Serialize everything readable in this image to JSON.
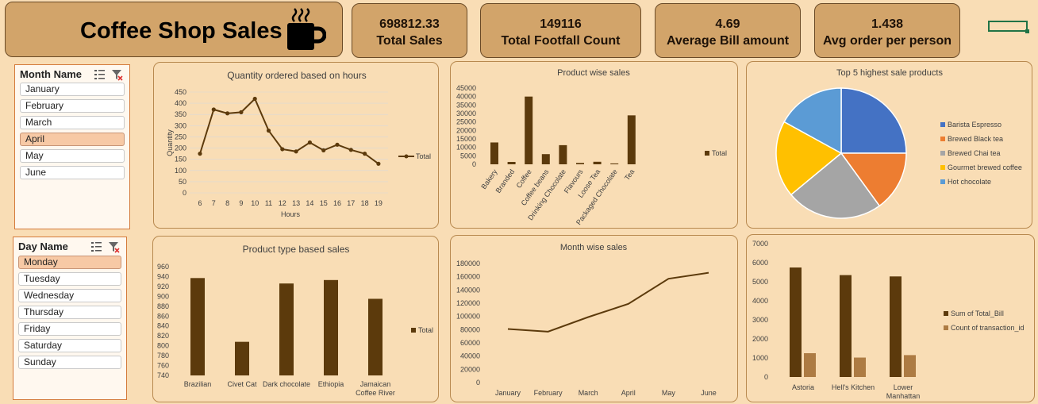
{
  "header": {
    "title": "Coffee Shop Sales",
    "icon": "coffee-cup-icon"
  },
  "kpis": [
    {
      "value": "698812.33",
      "label": "Total Sales"
    },
    {
      "value": "149116",
      "label": "Total Footfall Count"
    },
    {
      "value": "4.69",
      "label": "Average Bill amount"
    },
    {
      "value": "1.438",
      "label": "Avg order per person"
    }
  ],
  "slicers": {
    "month": {
      "header": "Month Name",
      "items": [
        "January",
        "February",
        "March",
        "April",
        "May",
        "June"
      ],
      "selected": "April"
    },
    "day": {
      "header": "Day Name",
      "items": [
        "Monday",
        "Tuesday",
        "Wednesday",
        "Thursday",
        "Friday",
        "Saturday",
        "Sunday"
      ],
      "selected": "Monday"
    }
  },
  "colors": {
    "brown_dark": "#5c3a0c",
    "brown_light": "#ad7b43",
    "kpi_fill": "#d2a46a",
    "background": "#f9ddb5",
    "pie": [
      "#4472c4",
      "#ed7d31",
      "#a5a5a5",
      "#ffc000",
      "#5b9bd5"
    ]
  },
  "chart_data": [
    {
      "id": "hours",
      "type": "line",
      "title": "Quantity ordered based on hours",
      "xlabel": "Hours",
      "ylabel": "Quantity",
      "x": [
        "6",
        "7",
        "8",
        "9",
        "10",
        "11",
        "12",
        "13",
        "14",
        "15",
        "16",
        "17",
        "18",
        "19"
      ],
      "series": [
        {
          "name": "Total",
          "values": [
            175,
            372,
            355,
            360,
            420,
            278,
            195,
            185,
            225,
            190,
            215,
            192,
            175,
            130
          ]
        }
      ],
      "ylim": [
        0,
        450
      ],
      "yticks": [
        0,
        50,
        100,
        150,
        200,
        250,
        300,
        350,
        400,
        450
      ],
      "legend": "right",
      "grid": true
    },
    {
      "id": "product",
      "type": "bar",
      "title": "Product wise sales",
      "categories": [
        "Bakery",
        "Branded",
        "Coffee",
        "Coffee beans",
        "Drinking Chocolate",
        "Flavours",
        "Loose Tea",
        "Packaged Chocolate",
        "Tea"
      ],
      "series": [
        {
          "name": "Total",
          "values": [
            12900,
            1400,
            40000,
            6000,
            11300,
            800,
            1500,
            500,
            28900
          ]
        }
      ],
      "ylim": [
        0,
        45000
      ],
      "yticks": [
        0,
        5000,
        10000,
        15000,
        20000,
        25000,
        30000,
        35000,
        40000,
        45000
      ],
      "legend": "right",
      "grid": false
    },
    {
      "id": "top5",
      "type": "pie",
      "title": "Top 5 highest sale products",
      "categories": [
        "Barista Espresso",
        "Brewed Black tea",
        "Brewed Chai tea",
        "Gourmet brewed coffee",
        "Hot chocolate"
      ],
      "values": [
        25,
        15,
        24,
        19,
        17
      ],
      "legend": "right"
    },
    {
      "id": "ptype",
      "type": "bar",
      "title": "Product type based sales",
      "categories": [
        "Brazilian",
        "Civet Cat",
        "Dark chocolate",
        "Ethiopia",
        "Jamaican Coffee River"
      ],
      "series": [
        {
          "name": "Total",
          "values": [
            937,
            808,
            926,
            933,
            895
          ]
        }
      ],
      "ylim": [
        740,
        960
      ],
      "yticks": [
        740,
        760,
        780,
        800,
        820,
        840,
        860,
        880,
        900,
        920,
        940,
        960
      ],
      "legend": "right",
      "grid": false
    },
    {
      "id": "month",
      "type": "line",
      "title": "Month wise sales",
      "x": [
        "January",
        "February",
        "March",
        "April",
        "May",
        "June"
      ],
      "series": [
        {
          "values": [
            81000,
            77000,
            99000,
            119000,
            157000,
            166000
          ]
        }
      ],
      "ylim": [
        0,
        180000
      ],
      "yticks": [
        0,
        20000,
        40000,
        60000,
        80000,
        100000,
        120000,
        140000,
        160000,
        180000
      ],
      "grid": false
    },
    {
      "id": "store",
      "type": "bar",
      "categories": [
        "Astoria",
        "Hell's Kitchen",
        "Lower Manhattan"
      ],
      "series": [
        {
          "name": "Sum of Total_Bill",
          "values": [
            5750,
            5350,
            5280
          ]
        },
        {
          "name": "Count of transaction_id",
          "values": [
            1250,
            1020,
            1150
          ]
        }
      ],
      "ylim": [
        0,
        7000
      ],
      "yticks": [
        0,
        1000,
        2000,
        3000,
        4000,
        5000,
        6000,
        7000
      ],
      "legend": "right",
      "grid": false
    }
  ]
}
